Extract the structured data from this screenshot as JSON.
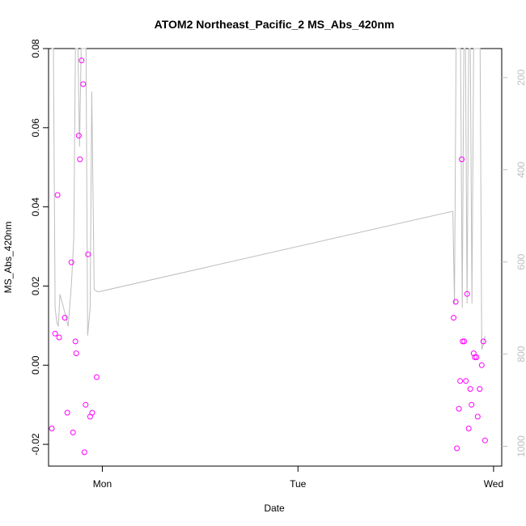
{
  "chart_data": {
    "type": "scatter",
    "title": "ATOM2 Northeast_Pacific_2 MS_Abs_420nm",
    "xlabel": "Date",
    "ylabel": "MS_Abs_420nm",
    "xlim": [
      "Sun 20:30",
      "Wed 01:00"
    ],
    "ylim": [
      -0.0255,
      0.08
    ],
    "x_ticks": [
      {
        "label": "Mon",
        "hours_from_mon": 0
      },
      {
        "label": "Tue",
        "hours_from_mon": 24
      },
      {
        "label": "Wed",
        "hours_from_mon": 48
      }
    ],
    "y_ticks": [
      -0.02,
      0.0,
      0.02,
      0.04,
      0.06,
      0.08
    ],
    "y2_ticks": [
      200,
      400,
      600,
      800,
      1000
    ],
    "y2lim": [
      137,
      1043
    ],
    "y2_reversed": true,
    "colors": {
      "points": "#ff00ff",
      "line": "#bebebe",
      "axes": "#000000"
    },
    "series": [
      {
        "type": "scatter",
        "points_hours_from_mon": [
          [
            -6.2,
            -0.016
          ],
          [
            -5.8,
            0.008
          ],
          [
            -5.5,
            0.043
          ],
          [
            -5.3,
            0.007
          ],
          [
            -4.6,
            0.012
          ],
          [
            -4.3,
            -0.012
          ],
          [
            -3.8,
            0.026
          ],
          [
            -3.6,
            -0.017
          ],
          [
            -3.3,
            0.006
          ],
          [
            -3.2,
            0.003
          ],
          [
            -2.9,
            0.058
          ],
          [
            -2.75,
            0.052
          ],
          [
            -2.55,
            0.077
          ],
          [
            -2.35,
            0.071
          ],
          [
            -2.2,
            -0.022
          ],
          [
            -2.05,
            -0.01
          ],
          [
            -1.75,
            0.028
          ],
          [
            -1.5,
            -0.013
          ],
          [
            -1.25,
            -0.012
          ],
          [
            -0.7,
            -0.003
          ],
          [
            43.1,
            0.012
          ],
          [
            43.35,
            0.016
          ],
          [
            43.5,
            -0.021
          ],
          [
            43.75,
            -0.011
          ],
          [
            43.9,
            -0.004
          ],
          [
            44.1,
            0.052
          ],
          [
            44.2,
            0.006
          ],
          [
            44.4,
            0.006
          ],
          [
            44.6,
            -0.004
          ],
          [
            44.75,
            0.018
          ],
          [
            44.95,
            -0.016
          ],
          [
            45.15,
            -0.006
          ],
          [
            45.3,
            -0.01
          ],
          [
            45.55,
            0.003
          ],
          [
            45.7,
            0.002
          ],
          [
            45.9,
            0.002
          ],
          [
            46.05,
            -0.013
          ],
          [
            46.3,
            -0.006
          ],
          [
            46.55,
            0.0
          ],
          [
            46.75,
            0.006
          ],
          [
            46.95,
            -0.019
          ]
        ]
      },
      {
        "type": "line",
        "axis": "right",
        "points_hours_from_mon": [
          [
            -6.25,
            137
          ],
          [
            -6.0,
            137
          ],
          [
            -5.8,
            700
          ],
          [
            -5.6,
            730
          ],
          [
            -5.4,
            740
          ],
          [
            -5.2,
            670
          ],
          [
            -4.6,
            710
          ],
          [
            -4.2,
            740
          ],
          [
            -3.8,
            650
          ],
          [
            -3.5,
            550
          ],
          [
            -3.3,
            137
          ],
          [
            -3.0,
            137
          ],
          [
            -2.8,
            350
          ],
          [
            -2.6,
            137
          ],
          [
            -2.4,
            137
          ],
          [
            -2.2,
            137
          ],
          [
            -2.0,
            137
          ],
          [
            -1.8,
            760
          ],
          [
            -1.5,
            700
          ],
          [
            -1.3,
            230
          ],
          [
            -1.0,
            660
          ],
          [
            -0.5,
            665
          ],
          [
            43.0,
            490
          ],
          [
            43.2,
            690
          ],
          [
            43.4,
            137
          ],
          [
            43.6,
            137
          ],
          [
            43.75,
            137
          ],
          [
            43.95,
            137
          ],
          [
            44.15,
            700
          ],
          [
            44.35,
            137
          ],
          [
            44.55,
            137
          ],
          [
            44.75,
            690
          ],
          [
            44.95,
            137
          ],
          [
            45.15,
            137
          ],
          [
            45.35,
            690
          ],
          [
            45.55,
            137
          ],
          [
            45.75,
            137
          ],
          [
            45.95,
            137
          ],
          [
            46.15,
            137
          ],
          [
            46.35,
            137
          ],
          [
            46.55,
            790
          ],
          [
            46.75,
            780
          ],
          [
            46.95,
            760
          ]
        ]
      }
    ],
    "grid": false
  }
}
